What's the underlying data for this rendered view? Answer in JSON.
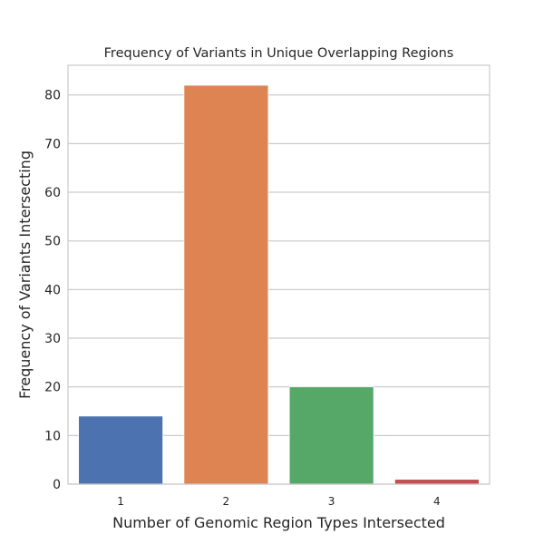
{
  "chart_data": {
    "type": "bar",
    "title": "Frequency of Variants in Unique Overlapping Regions",
    "xlabel": "Number of Genomic Region Types Intersected",
    "ylabel": "Frequency of Variants Intersecting",
    "categories": [
      "1",
      "2",
      "3",
      "4"
    ],
    "values": [
      14,
      82,
      20,
      1
    ],
    "colors": [
      "#4c72b0",
      "#dd8452",
      "#55a868",
      "#c44e52"
    ],
    "ylim": [
      0,
      86.1
    ],
    "yticks": [
      0,
      10,
      20,
      30,
      40,
      50,
      60,
      70,
      80
    ],
    "grid": true,
    "legend": "none"
  }
}
